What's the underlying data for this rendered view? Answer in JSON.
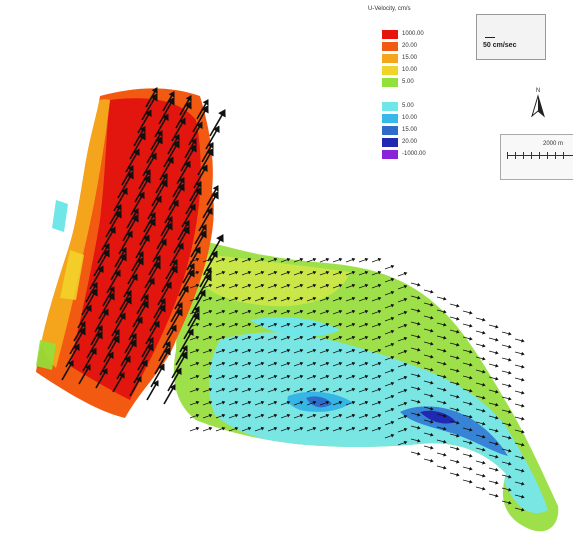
{
  "legend": {
    "title": "U-Velocity, cm/s",
    "items": [
      {
        "label": "1000.00",
        "color": "#e8140c"
      },
      {
        "label": "20.00",
        "color": "#f25a12"
      },
      {
        "label": "15.00",
        "color": "#f4a51c"
      },
      {
        "label": "10.00",
        "color": "#f2d32a"
      },
      {
        "label": "5.00",
        "color": "#92e03a"
      },
      {
        "label": "",
        "color": "#ffffff"
      },
      {
        "label": "5.00",
        "color": "#6fe6e8"
      },
      {
        "label": "10.00",
        "color": "#36b9e9"
      },
      {
        "label": "15.00",
        "color": "#2f6cc9"
      },
      {
        "label": "20.00",
        "color": "#2128b2"
      },
      {
        "label": "-1000.00",
        "color": "#8a22d9"
      }
    ]
  },
  "reference_vector": {
    "label": "50 cm/sec"
  },
  "north_arrow": {
    "label": "N"
  },
  "scale_bar": {
    "label": "2000 m"
  }
}
